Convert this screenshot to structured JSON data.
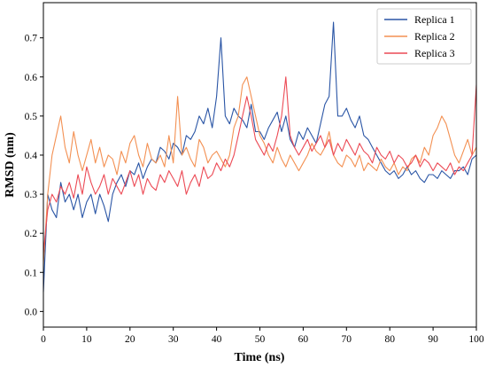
{
  "chart_data": {
    "type": "line",
    "xlabel": "Time (ns)",
    "ylabel": "RMSD (nm)",
    "xlim": [
      0,
      100
    ],
    "ylim": [
      -0.04,
      0.79
    ],
    "x_ticks": [
      0,
      10,
      20,
      30,
      40,
      50,
      60,
      70,
      80,
      90,
      100
    ],
    "y_ticks": [
      0.0,
      0.1,
      0.2,
      0.3,
      0.4,
      0.5,
      0.6,
      0.7
    ],
    "grid": false,
    "legend_position": "top-right",
    "series": [
      {
        "name": "Replica 1",
        "color": "#2a55a5",
        "x": [
          0,
          1,
          2,
          3,
          4,
          5,
          6,
          7,
          8,
          9,
          10,
          11,
          12,
          13,
          14,
          15,
          16,
          17,
          18,
          19,
          20,
          21,
          22,
          23,
          24,
          25,
          26,
          27,
          28,
          29,
          30,
          31,
          32,
          33,
          34,
          35,
          36,
          37,
          38,
          39,
          40,
          41,
          42,
          43,
          44,
          45,
          46,
          47,
          48,
          49,
          50,
          51,
          52,
          53,
          54,
          55,
          56,
          57,
          58,
          59,
          60,
          61,
          62,
          63,
          64,
          65,
          66,
          67,
          68,
          69,
          70,
          71,
          72,
          73,
          74,
          75,
          76,
          77,
          78,
          79,
          80,
          81,
          82,
          83,
          84,
          85,
          86,
          87,
          88,
          89,
          90,
          91,
          92,
          93,
          94,
          95,
          96,
          97,
          98,
          99,
          100
        ],
        "values": [
          0.05,
          0.3,
          0.26,
          0.24,
          0.33,
          0.28,
          0.3,
          0.26,
          0.3,
          0.24,
          0.28,
          0.3,
          0.25,
          0.3,
          0.27,
          0.23,
          0.3,
          0.33,
          0.35,
          0.32,
          0.36,
          0.35,
          0.38,
          0.34,
          0.37,
          0.39,
          0.38,
          0.42,
          0.41,
          0.39,
          0.43,
          0.42,
          0.4,
          0.45,
          0.44,
          0.46,
          0.5,
          0.48,
          0.52,
          0.47,
          0.55,
          0.7,
          0.5,
          0.48,
          0.52,
          0.5,
          0.49,
          0.47,
          0.53,
          0.46,
          0.46,
          0.44,
          0.47,
          0.49,
          0.51,
          0.46,
          0.5,
          0.44,
          0.42,
          0.46,
          0.44,
          0.47,
          0.45,
          0.43,
          0.48,
          0.53,
          0.55,
          0.74,
          0.5,
          0.5,
          0.52,
          0.49,
          0.47,
          0.5,
          0.45,
          0.44,
          0.42,
          0.4,
          0.38,
          0.36,
          0.35,
          0.36,
          0.34,
          0.35,
          0.37,
          0.35,
          0.36,
          0.34,
          0.33,
          0.35,
          0.35,
          0.34,
          0.36,
          0.35,
          0.34,
          0.36,
          0.36,
          0.37,
          0.35,
          0.39,
          0.4
        ]
      },
      {
        "name": "Replica 2",
        "color": "#f39052",
        "x": [
          0,
          1,
          2,
          3,
          4,
          5,
          6,
          7,
          8,
          9,
          10,
          11,
          12,
          13,
          14,
          15,
          16,
          17,
          18,
          19,
          20,
          21,
          22,
          23,
          24,
          25,
          26,
          27,
          28,
          29,
          30,
          31,
          32,
          33,
          34,
          35,
          36,
          37,
          38,
          39,
          40,
          41,
          42,
          43,
          44,
          45,
          46,
          47,
          48,
          49,
          50,
          51,
          52,
          53,
          54,
          55,
          56,
          57,
          58,
          59,
          60,
          61,
          62,
          63,
          64,
          65,
          66,
          67,
          68,
          69,
          70,
          71,
          72,
          73,
          74,
          75,
          76,
          77,
          78,
          79,
          80,
          81,
          82,
          83,
          84,
          85,
          86,
          87,
          88,
          89,
          90,
          91,
          92,
          93,
          94,
          95,
          96,
          97,
          98,
          99,
          100
        ],
        "values": [
          0.12,
          0.3,
          0.4,
          0.45,
          0.5,
          0.42,
          0.38,
          0.46,
          0.4,
          0.36,
          0.4,
          0.44,
          0.38,
          0.42,
          0.37,
          0.4,
          0.39,
          0.35,
          0.41,
          0.38,
          0.43,
          0.45,
          0.4,
          0.37,
          0.43,
          0.39,
          0.38,
          0.4,
          0.37,
          0.45,
          0.38,
          0.55,
          0.4,
          0.42,
          0.39,
          0.37,
          0.44,
          0.42,
          0.38,
          0.4,
          0.41,
          0.39,
          0.37,
          0.4,
          0.47,
          0.5,
          0.58,
          0.6,
          0.55,
          0.5,
          0.45,
          0.43,
          0.4,
          0.38,
          0.42,
          0.39,
          0.37,
          0.4,
          0.38,
          0.36,
          0.38,
          0.4,
          0.43,
          0.41,
          0.4,
          0.42,
          0.46,
          0.4,
          0.38,
          0.37,
          0.4,
          0.39,
          0.37,
          0.4,
          0.36,
          0.38,
          0.37,
          0.36,
          0.39,
          0.37,
          0.36,
          0.38,
          0.35,
          0.37,
          0.36,
          0.39,
          0.4,
          0.38,
          0.42,
          0.4,
          0.45,
          0.47,
          0.5,
          0.48,
          0.44,
          0.4,
          0.38,
          0.41,
          0.44,
          0.4,
          0.42
        ]
      },
      {
        "name": "Replica 3",
        "color": "#ec4a55",
        "x": [
          0,
          1,
          2,
          3,
          4,
          5,
          6,
          7,
          8,
          9,
          10,
          11,
          12,
          13,
          14,
          15,
          16,
          17,
          18,
          19,
          20,
          21,
          22,
          23,
          24,
          25,
          26,
          27,
          28,
          29,
          30,
          31,
          32,
          33,
          34,
          35,
          36,
          37,
          38,
          39,
          40,
          41,
          42,
          43,
          44,
          45,
          46,
          47,
          48,
          49,
          50,
          51,
          52,
          53,
          54,
          55,
          56,
          57,
          58,
          59,
          60,
          61,
          62,
          63,
          64,
          65,
          66,
          67,
          68,
          69,
          70,
          71,
          72,
          73,
          74,
          75,
          76,
          77,
          78,
          79,
          80,
          81,
          82,
          83,
          84,
          85,
          86,
          87,
          88,
          89,
          90,
          91,
          92,
          93,
          94,
          95,
          96,
          97,
          98,
          99,
          100
        ],
        "values": [
          0.15,
          0.26,
          0.3,
          0.28,
          0.32,
          0.3,
          0.33,
          0.29,
          0.35,
          0.3,
          0.37,
          0.33,
          0.3,
          0.32,
          0.35,
          0.3,
          0.34,
          0.32,
          0.3,
          0.33,
          0.36,
          0.32,
          0.35,
          0.3,
          0.34,
          0.32,
          0.31,
          0.35,
          0.33,
          0.36,
          0.34,
          0.32,
          0.36,
          0.3,
          0.33,
          0.35,
          0.32,
          0.37,
          0.34,
          0.35,
          0.38,
          0.36,
          0.39,
          0.37,
          0.4,
          0.45,
          0.5,
          0.55,
          0.5,
          0.44,
          0.42,
          0.4,
          0.43,
          0.41,
          0.45,
          0.5,
          0.6,
          0.45,
          0.42,
          0.4,
          0.42,
          0.44,
          0.41,
          0.43,
          0.45,
          0.42,
          0.44,
          0.4,
          0.43,
          0.41,
          0.44,
          0.42,
          0.4,
          0.43,
          0.41,
          0.4,
          0.38,
          0.42,
          0.4,
          0.39,
          0.41,
          0.38,
          0.4,
          0.39,
          0.37,
          0.38,
          0.4,
          0.37,
          0.39,
          0.38,
          0.36,
          0.38,
          0.37,
          0.36,
          0.38,
          0.35,
          0.37,
          0.36,
          0.38,
          0.4,
          0.58
        ]
      }
    ]
  }
}
